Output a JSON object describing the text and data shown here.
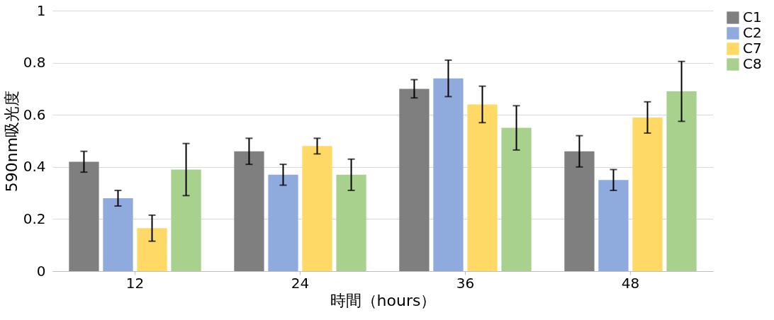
{
  "chart_data": {
    "type": "bar",
    "xlabel": "時間（hours）",
    "ylabel": "590nm吸光度",
    "categories": [
      "12",
      "24",
      "36",
      "48"
    ],
    "series": [
      {
        "name": "C1",
        "color": "#7f7f7f",
        "values": [
          0.42,
          0.46,
          0.7,
          0.46
        ],
        "errors": [
          0.04,
          0.05,
          0.035,
          0.06
        ]
      },
      {
        "name": "C2",
        "color": "#8faadc",
        "values": [
          0.28,
          0.37,
          0.74,
          0.35
        ],
        "errors": [
          0.03,
          0.04,
          0.07,
          0.04
        ]
      },
      {
        "name": "C7",
        "color": "#ffd966",
        "values": [
          0.165,
          0.48,
          0.64,
          0.59
        ],
        "errors": [
          0.05,
          0.03,
          0.07,
          0.06
        ]
      },
      {
        "name": "C8",
        "color": "#a9d18e",
        "values": [
          0.39,
          0.37,
          0.55,
          0.69
        ],
        "errors": [
          0.1,
          0.06,
          0.085,
          0.115
        ]
      }
    ],
    "ylim": [
      0,
      1
    ],
    "yticks": [
      0,
      0.2,
      0.4,
      0.6,
      0.8,
      1
    ],
    "grid": "y",
    "legend": "right"
  }
}
